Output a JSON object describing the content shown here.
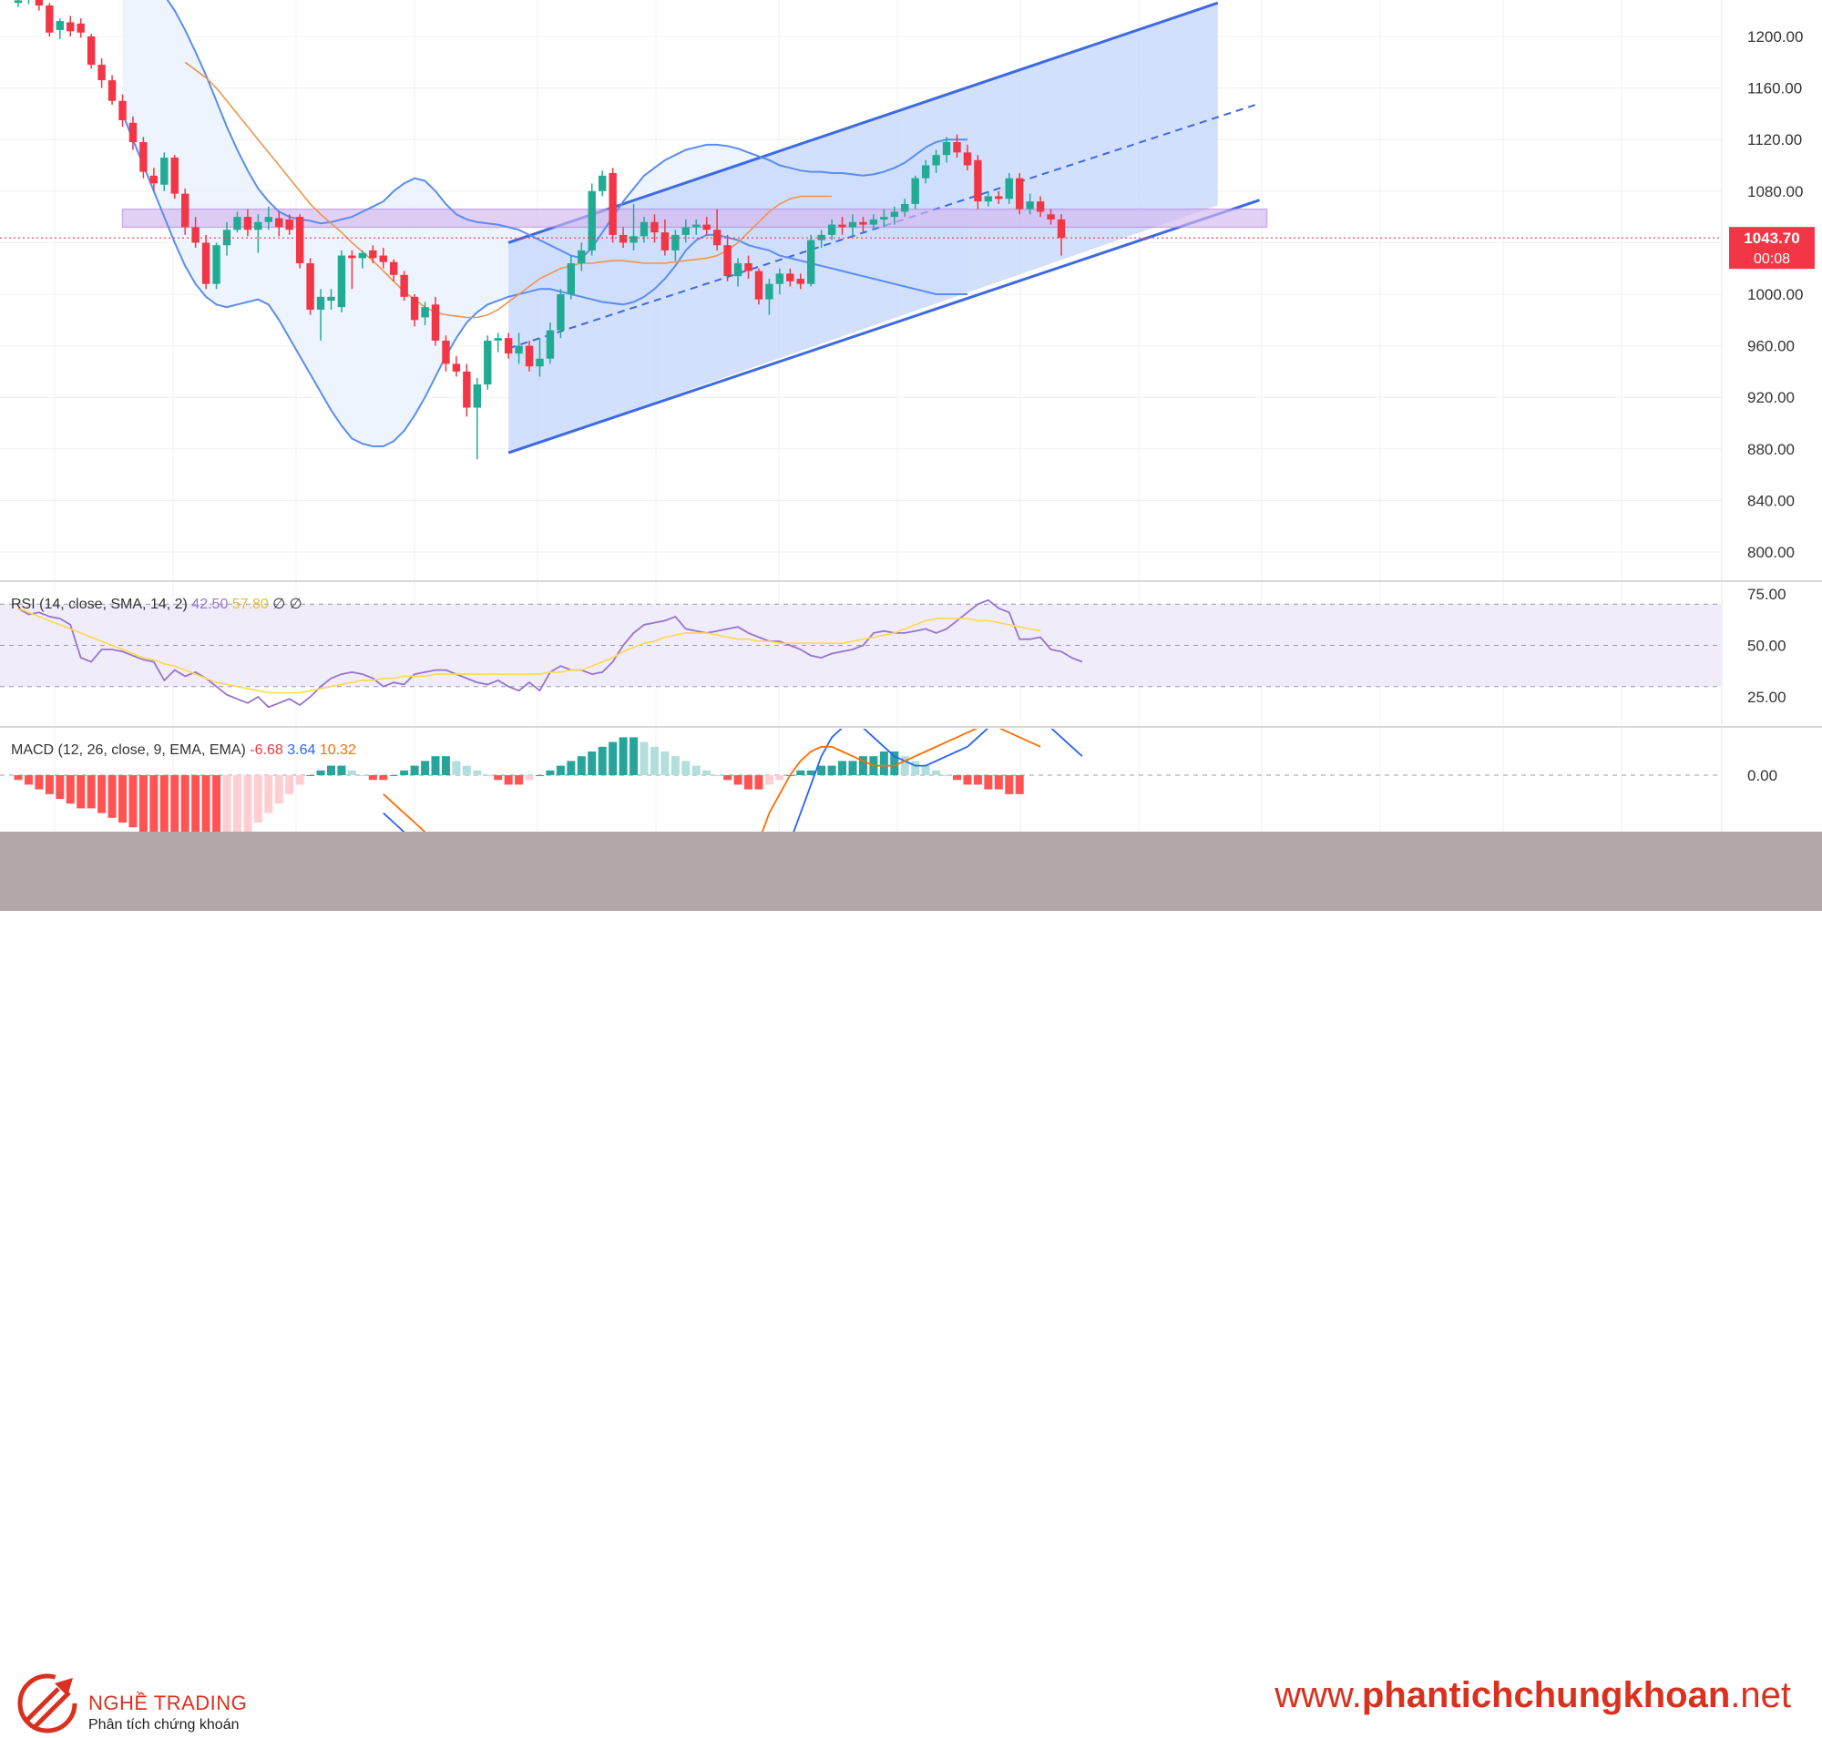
{
  "chart_data": [
    {
      "type": "candlestick",
      "panel": "price",
      "ylim": [
        780,
        1240
      ],
      "yticks": [
        "1200.00",
        "1160.00",
        "1120.00",
        "1080.00",
        "1040.00",
        "1000.00",
        "960.00",
        "920.00",
        "880.00",
        "840.00",
        "800.00"
      ],
      "last_price_label": "1043.70",
      "countdown_label": "00:08",
      "last_price": 1043.7,
      "colors": {
        "up": "#22ab94",
        "down": "#f23645",
        "bollinger": "#5b8def",
        "ma": "#f0944c",
        "channel": "#3e6ae1",
        "zone": "#b183e0"
      },
      "candles": [
        [
          1226,
          1232,
          1223,
          1228
        ],
        [
          1230,
          1240,
          1225,
          1236
        ],
        [
          1237,
          1242,
          1220,
          1224
        ],
        [
          1224,
          1226,
          1200,
          1203
        ],
        [
          1205,
          1214,
          1198,
          1212
        ],
        [
          1211,
          1216,
          1200,
          1204
        ],
        [
          1210,
          1214,
          1199,
          1203
        ],
        [
          1200,
          1202,
          1175,
          1178
        ],
        [
          1178,
          1183,
          1160,
          1166
        ],
        [
          1166,
          1170,
          1147,
          1150
        ],
        [
          1150,
          1155,
          1130,
          1135
        ],
        [
          1133,
          1138,
          1112,
          1118
        ],
        [
          1118,
          1122,
          1090,
          1095
        ],
        [
          1092,
          1098,
          1080,
          1086
        ],
        [
          1085,
          1110,
          1080,
          1106
        ],
        [
          1106,
          1108,
          1074,
          1078
        ],
        [
          1078,
          1082,
          1046,
          1052
        ],
        [
          1052,
          1060,
          1036,
          1040
        ],
        [
          1040,
          1046,
          1004,
          1008
        ],
        [
          1008,
          1040,
          1004,
          1038
        ],
        [
          1038,
          1056,
          1030,
          1050
        ],
        [
          1050,
          1064,
          1048,
          1060
        ],
        [
          1060,
          1066,
          1045,
          1050
        ],
        [
          1050,
          1062,
          1032,
          1056
        ],
        [
          1056,
          1068,
          1050,
          1060
        ],
        [
          1059,
          1064,
          1045,
          1052
        ],
        [
          1058,
          1062,
          1046,
          1050
        ],
        [
          1060,
          1062,
          1020,
          1024
        ],
        [
          1024,
          1028,
          984,
          988
        ],
        [
          988,
          1004,
          964,
          998
        ],
        [
          995,
          1004,
          988,
          998
        ],
        [
          990,
          1034,
          986,
          1030
        ],
        [
          1030,
          1034,
          1004,
          1028
        ],
        [
          1028,
          1034,
          1020,
          1032
        ],
        [
          1034,
          1038,
          1024,
          1028
        ],
        [
          1030,
          1036,
          1020,
          1025
        ],
        [
          1025,
          1027,
          1010,
          1015
        ],
        [
          1015,
          1018,
          995,
          998
        ],
        [
          998,
          1000,
          975,
          980
        ],
        [
          982,
          994,
          976,
          990
        ],
        [
          992,
          998,
          960,
          964
        ],
        [
          964,
          968,
          940,
          946
        ],
        [
          946,
          952,
          936,
          940
        ],
        [
          940,
          946,
          905,
          912
        ],
        [
          912,
          935,
          872,
          930
        ],
        [
          930,
          968,
          926,
          964
        ],
        [
          964,
          970,
          955,
          966
        ],
        [
          966,
          970,
          950,
          954
        ],
        [
          954,
          970,
          946,
          960
        ],
        [
          960,
          964,
          940,
          944
        ],
        [
          944,
          966,
          936,
          950
        ],
        [
          950,
          978,
          946,
          972
        ],
        [
          972,
          1004,
          966,
          1000
        ],
        [
          1000,
          1030,
          996,
          1024
        ],
        [
          1024,
          1040,
          1018,
          1034
        ],
        [
          1034,
          1086,
          1030,
          1080
        ],
        [
          1080,
          1096,
          1076,
          1092
        ],
        [
          1094,
          1098,
          1040,
          1046
        ],
        [
          1046,
          1052,
          1036,
          1040
        ],
        [
          1040,
          1070,
          1034,
          1045
        ],
        [
          1045,
          1060,
          1040,
          1056
        ],
        [
          1056,
          1062,
          1040,
          1048
        ],
        [
          1048,
          1058,
          1030,
          1034
        ],
        [
          1034,
          1050,
          1026,
          1046
        ],
        [
          1046,
          1058,
          1040,
          1052
        ],
        [
          1052,
          1058,
          1046,
          1054
        ],
        [
          1054,
          1060,
          1046,
          1050
        ],
        [
          1050,
          1066,
          1034,
          1038
        ],
        [
          1038,
          1046,
          1010,
          1014
        ],
        [
          1014,
          1028,
          1006,
          1024
        ],
        [
          1024,
          1030,
          1012,
          1018
        ],
        [
          1018,
          1020,
          992,
          996
        ],
        [
          996,
          1012,
          984,
          1008
        ],
        [
          1008,
          1020,
          1000,
          1016
        ],
        [
          1016,
          1020,
          1006,
          1010
        ],
        [
          1012,
          1016,
          1004,
          1008
        ],
        [
          1008,
          1046,
          1006,
          1042
        ],
        [
          1042,
          1050,
          1036,
          1046
        ],
        [
          1046,
          1058,
          1042,
          1054
        ],
        [
          1054,
          1060,
          1046,
          1052
        ],
        [
          1052,
          1062,
          1046,
          1056
        ],
        [
          1056,
          1060,
          1048,
          1054
        ],
        [
          1054,
          1062,
          1050,
          1058
        ],
        [
          1058,
          1066,
          1052,
          1060
        ],
        [
          1060,
          1068,
          1054,
          1064
        ],
        [
          1064,
          1074,
          1060,
          1070
        ],
        [
          1070,
          1092,
          1066,
          1090
        ],
        [
          1090,
          1104,
          1086,
          1100
        ],
        [
          1100,
          1112,
          1094,
          1108
        ],
        [
          1108,
          1122,
          1102,
          1118
        ],
        [
          1118,
          1124,
          1106,
          1110
        ],
        [
          1110,
          1116,
          1096,
          1100
        ],
        [
          1104,
          1108,
          1066,
          1072
        ],
        [
          1072,
          1080,
          1068,
          1076
        ],
        [
          1076,
          1080,
          1070,
          1074
        ],
        [
          1074,
          1094,
          1070,
          1090
        ],
        [
          1090,
          1094,
          1062,
          1066
        ],
        [
          1066,
          1078,
          1062,
          1072
        ],
        [
          1072,
          1076,
          1060,
          1064
        ],
        [
          1062,
          1066,
          1054,
          1058
        ],
        [
          1058,
          1062,
          1030,
          1043.7
        ]
      ],
      "bollinger_upper": [
        1236,
        1240,
        1242,
        1238,
        1232,
        1220,
        1205,
        1188,
        1170,
        1150,
        1130,
        1112,
        1096,
        1082,
        1072,
        1064,
        1060,
        1058,
        1057,
        1055,
        1056,
        1058,
        1060,
        1064,
        1068,
        1072,
        1080,
        1086,
        1090,
        1088,
        1080,
        1070,
        1062,
        1058,
        1056,
        1055,
        1054,
        1052,
        1050,
        1046,
        1042,
        1038,
        1034,
        1030,
        1028,
        1036,
        1048,
        1060,
        1072,
        1082,
        1092,
        1098,
        1104,
        1108,
        1112,
        1114,
        1116,
        1116,
        1115,
        1113,
        1110,
        1107,
        1104,
        1100,
        1098,
        1096,
        1095,
        1095,
        1094,
        1094,
        1093,
        1092,
        1093,
        1095,
        1098,
        1102,
        1108,
        1114,
        1118,
        1120,
        1120,
        1120
      ],
      "bollinger_lower": [
        1140,
        1120,
        1100,
        1080,
        1060,
        1040,
        1022,
        1008,
        998,
        992,
        990,
        992,
        994,
        996,
        992,
        980,
        966,
        952,
        938,
        924,
        910,
        898,
        888,
        884,
        882,
        882,
        886,
        894,
        906,
        920,
        936,
        952,
        966,
        978,
        986,
        992,
        995,
        998,
        1000,
        1002,
        1004,
        1004,
        1002,
        1000,
        998,
        996,
        994,
        993,
        992,
        994,
        998,
        1004,
        1012,
        1022,
        1034,
        1042,
        1046,
        1046,
        1044,
        1042,
        1038,
        1036,
        1034,
        1030,
        1028,
        1026,
        1024,
        1022,
        1020,
        1018,
        1016,
        1014,
        1012,
        1010,
        1008,
        1006,
        1004,
        1002,
        1000,
        1000,
        1000,
        1000
      ],
      "ma": [
        1180,
        1174,
        1168,
        1160,
        1150,
        1140,
        1130,
        1120,
        1110,
        1100,
        1090,
        1080,
        1070,
        1062,
        1055,
        1048,
        1040,
        1033,
        1026,
        1018,
        1010,
        1002,
        996,
        990,
        986,
        984,
        983,
        982,
        982,
        984,
        988,
        994,
        1000,
        1006,
        1012,
        1016,
        1020,
        1022,
        1024,
        1024,
        1025,
        1026,
        1026,
        1025,
        1024,
        1024,
        1024,
        1025,
        1026,
        1027,
        1028,
        1030,
        1034,
        1040,
        1048,
        1056,
        1064,
        1070,
        1074,
        1076,
        1076,
        1076,
        1076
      ],
      "channel": {
        "start": [
          47,
          877
        ],
        "upper_end": [
          115,
          1226
        ],
        "lower_end": [
          115,
          1069
        ],
        "mid_end": [
          115,
          1148
        ]
      },
      "zone": {
        "x_start": 10,
        "x_end": 119,
        "low": 1052,
        "high": 1066
      }
    },
    {
      "type": "line",
      "panel": "rsi",
      "label": "RSI (14, close, SMA, 14, 2)",
      "values_text": [
        "42.50",
        "57.80",
        "∅",
        "∅"
      ],
      "ylim": [
        0,
        100
      ],
      "yticks": [
        "75.00",
        "50.00",
        "25.00"
      ],
      "band": [
        30,
        70
      ],
      "series": [
        {
          "color": "#9575cd",
          "values": [
            68,
            65,
            66,
            64,
            63,
            60,
            44,
            42,
            48,
            48,
            47,
            45,
            43,
            42,
            33,
            38,
            35,
            37,
            34,
            30,
            26,
            24,
            22,
            25,
            20,
            22,
            24,
            21,
            25,
            30,
            34,
            36,
            37,
            36,
            34,
            30,
            32,
            31,
            36,
            37,
            38,
            38,
            36,
            34,
            32,
            31,
            33,
            30,
            28,
            32,
            28,
            37,
            40,
            38,
            38,
            36,
            37,
            42,
            50,
            56,
            60,
            61,
            62,
            64,
            58,
            57,
            56,
            57,
            58,
            59,
            56,
            54,
            52,
            52,
            50,
            48,
            45,
            44,
            46,
            47,
            48,
            50,
            56,
            57,
            56,
            56,
            57,
            58,
            56,
            58,
            62,
            66,
            70,
            72,
            68,
            66,
            53,
            53,
            54,
            48,
            47,
            44,
            42
          ]
        },
        {
          "color": "#ffd84d",
          "values": [
            68,
            66,
            64,
            62,
            60,
            58,
            56,
            54,
            52,
            50,
            48,
            46,
            44,
            43,
            41,
            40,
            38,
            36,
            34,
            32,
            31,
            30,
            29,
            28,
            27,
            27,
            27,
            27,
            28,
            29,
            30,
            31,
            32,
            33,
            33,
            34,
            34,
            35,
            35,
            35,
            36,
            36,
            36,
            36,
            36,
            36,
            36,
            36,
            36,
            36,
            36,
            37,
            37,
            38,
            38,
            40,
            42,
            44,
            47,
            49,
            51,
            52,
            54,
            55,
            56,
            56,
            56,
            55,
            54,
            53,
            53,
            52,
            52,
            51,
            51,
            51,
            51,
            51,
            51,
            51,
            52,
            53,
            54,
            55,
            56,
            58,
            60,
            62,
            63,
            63,
            63,
            63,
            62,
            62,
            61,
            60,
            59,
            58,
            57
          ]
        }
      ]
    },
    {
      "type": "bar_line",
      "panel": "macd",
      "label": "MACD (12, 26, close, 9, EMA, EMA)",
      "values_text": [
        "-6.68",
        "3.64",
        "10.32"
      ],
      "ylim": [
        -40,
        12
      ],
      "ytick": "0.00",
      "histogram": [
        -1,
        -2,
        -3,
        -4,
        -5,
        -6,
        -7,
        -7,
        -8,
        -9,
        -10,
        -11,
        -12,
        -12,
        -13,
        -14,
        -14,
        -15,
        -16,
        -16,
        -15,
        -14,
        -12,
        -10,
        -8,
        -6,
        -4,
        -2,
        0,
        1,
        2,
        2,
        1,
        0,
        -1,
        -1,
        0,
        1,
        2,
        3,
        4,
        4,
        3,
        2,
        1,
        0,
        -1,
        -2,
        -2,
        -1,
        0,
        1,
        2,
        3,
        4,
        5,
        6,
        7,
        8,
        8,
        7,
        6,
        5,
        4,
        3,
        2,
        1,
        0,
        -1,
        -2,
        -3,
        -3,
        -2,
        -1,
        0,
        1,
        1,
        2,
        2,
        3,
        3,
        4,
        4,
        5,
        5,
        4,
        3,
        2,
        1,
        0,
        -1,
        -2,
        -2,
        -3,
        -3,
        -4,
        -4
      ],
      "macd_line": [
        -8,
        -10,
        -12,
        -14,
        -16,
        -18,
        -20,
        -22,
        -24,
        -26,
        -28,
        -30,
        -32,
        -34,
        -36,
        -38,
        -40,
        -42,
        -44,
        -45,
        -46,
        -46,
        -45,
        -44,
        -42,
        -40,
        -38,
        -36,
        -35,
        -34,
        -33,
        -32,
        -31,
        -30,
        -29,
        -28,
        -26,
        -24,
        -20,
        -14,
        -8,
        -2,
        4,
        8,
        10,
        11,
        10,
        8,
        6,
        4,
        3,
        2,
        2,
        3,
        4,
        5,
        6,
        8,
        10,
        12,
        14,
        14,
        13,
        12,
        10,
        8,
        6,
        4
      ],
      "signal_line": [
        -4,
        -6,
        -8,
        -10,
        -12,
        -14,
        -16,
        -18,
        -20,
        -22,
        -24,
        -26,
        -28,
        -30,
        -32,
        -34,
        -36,
        -38,
        -39,
        -40,
        -41,
        -42,
        -42,
        -42,
        -41,
        -40,
        -39,
        -38,
        -37,
        -36,
        -34,
        -32,
        -30,
        -28,
        -24,
        -20,
        -14,
        -8,
        -4,
        0,
        3,
        5,
        6,
        6,
        5,
        4,
        3,
        2,
        2,
        2,
        3,
        4,
        5,
        6,
        7,
        8,
        9,
        10,
        10,
        10,
        9,
        8,
        7,
        6
      ]
    }
  ],
  "footer": {
    "brand_name": "NGHỀ TRADING",
    "brand_sub": "Phân tích chứng khoán",
    "site_prefix": "www.",
    "site_bold": "phantichchungkhoan",
    "site_suffix": ".net"
  }
}
